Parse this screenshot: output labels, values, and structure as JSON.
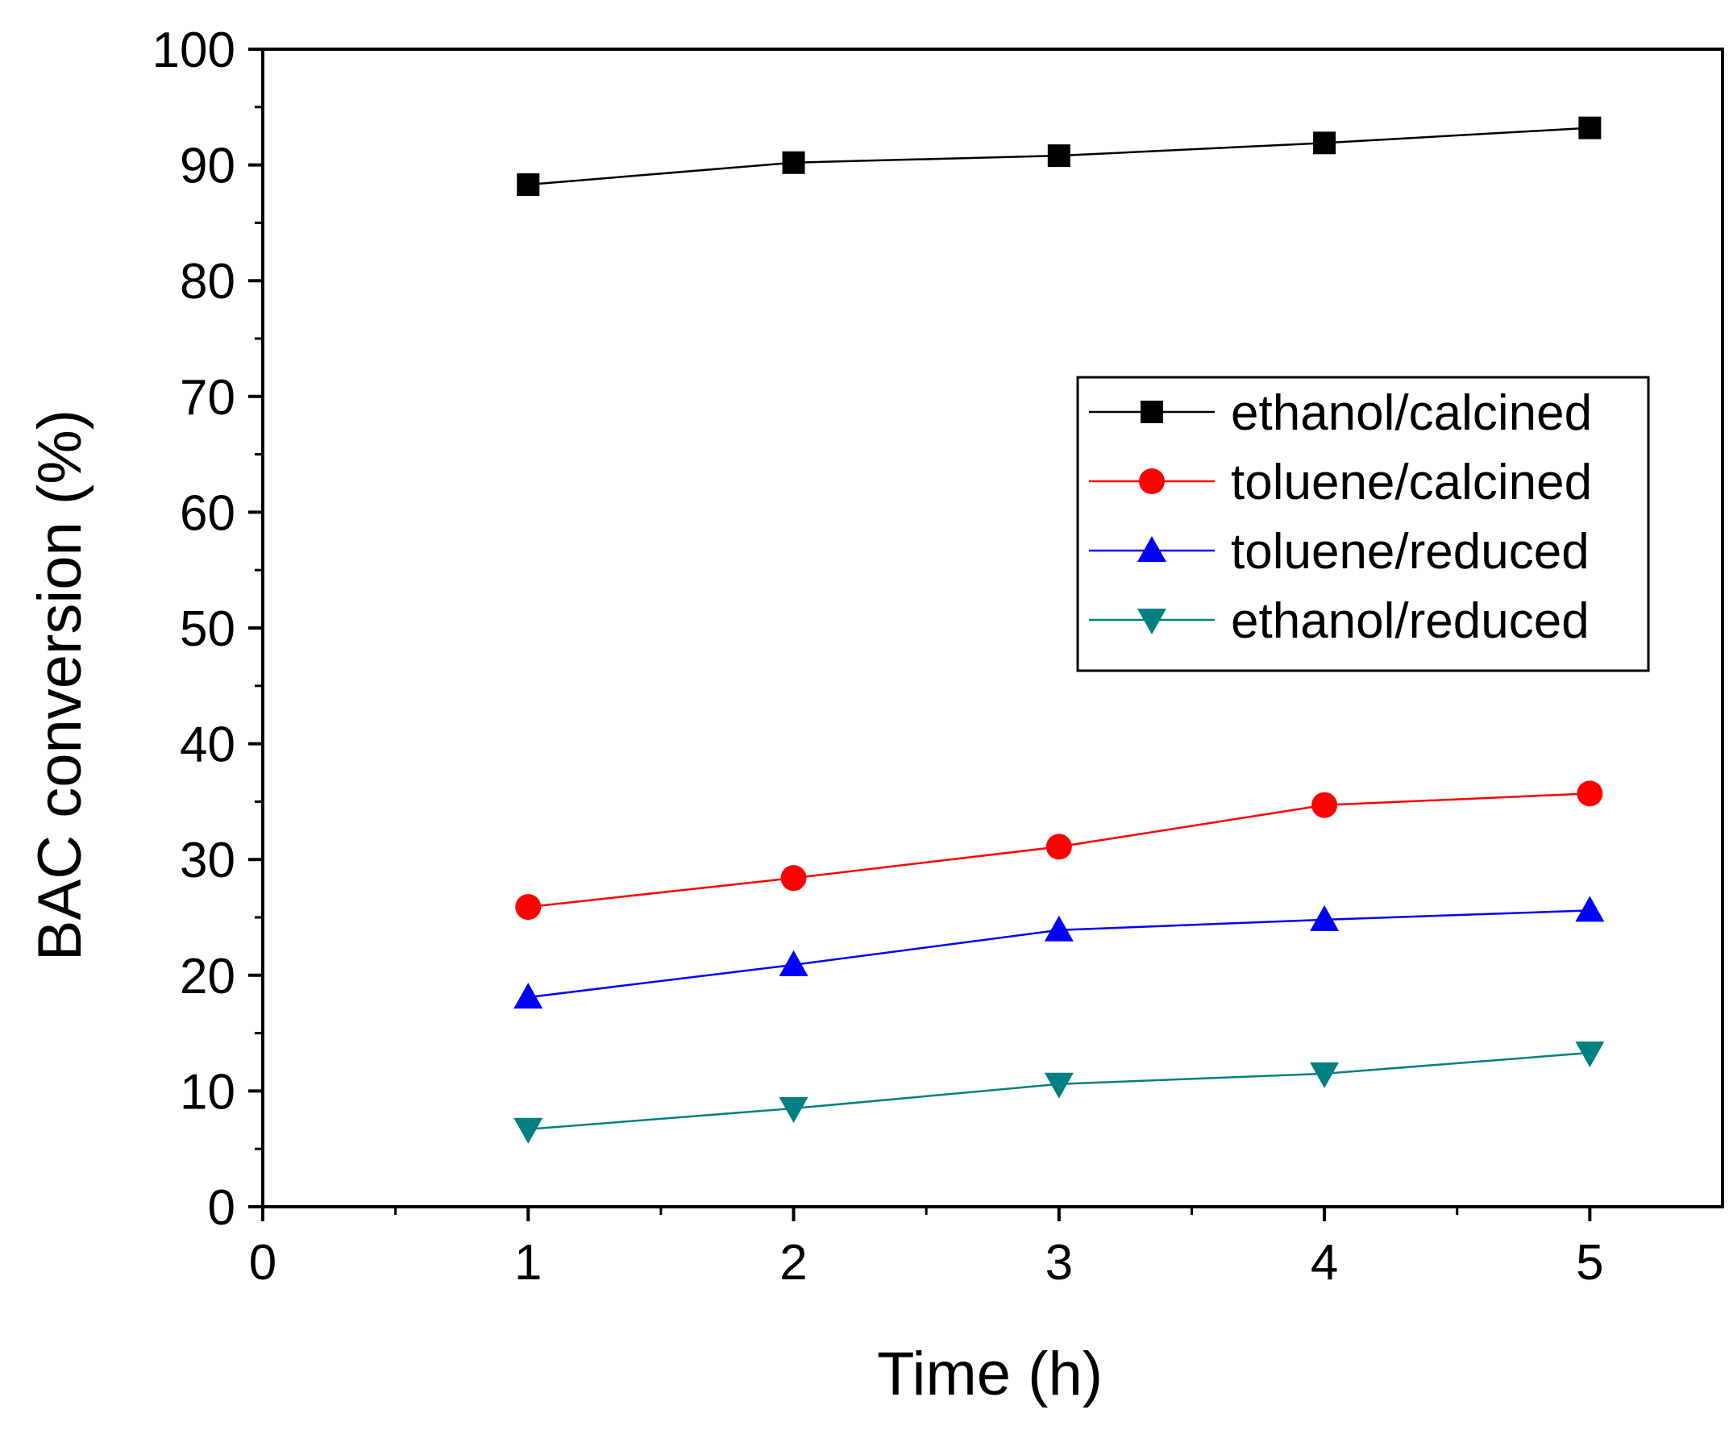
{
  "chart_data": {
    "type": "line",
    "title": "",
    "xlabel": "Time (h)",
    "ylabel": "BAC conversion (%)",
    "xlim": [
      0,
      5.5
    ],
    "ylim": [
      0,
      100
    ],
    "xticks": [
      "0",
      "1",
      "2",
      "3",
      "4",
      "5"
    ],
    "yticks": [
      "0",
      "10",
      "20",
      "30",
      "40",
      "50",
      "60",
      "70",
      "80",
      "90",
      "100"
    ],
    "grid": false,
    "legend_position": "upper-right",
    "x": [
      1,
      2,
      3,
      4,
      5
    ],
    "series": [
      {
        "name": "ethanol/calcined",
        "marker": "square",
        "color": "#000000",
        "values": [
          88.3,
          90.2,
          90.8,
          91.9,
          93.2
        ]
      },
      {
        "name": "toluene/calcined",
        "marker": "circle",
        "color": "#ff0000",
        "values": [
          25.9,
          28.4,
          31.1,
          34.7,
          35.7
        ]
      },
      {
        "name": "toluene/reduced",
        "marker": "triangle-up",
        "color": "#0000ff",
        "values": [
          18.1,
          20.9,
          23.9,
          24.8,
          25.6
        ]
      },
      {
        "name": "ethanol/reduced",
        "marker": "triangle-down",
        "color": "#008080",
        "values": [
          6.7,
          8.5,
          10.6,
          11.5,
          13.3
        ]
      }
    ]
  }
}
